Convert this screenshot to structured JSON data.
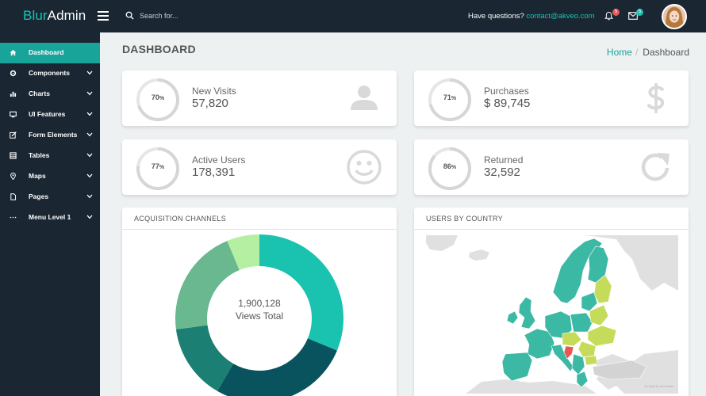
{
  "app": {
    "brand_a": "Blur",
    "brand_b": "Admin"
  },
  "topbar": {
    "search_placeholder": "Search for...",
    "question": "Have questions? ",
    "email": "contact@akveo.com",
    "notifications_count": "5",
    "messages_count": "5"
  },
  "sidebar": {
    "items": [
      {
        "label": "Dashboard",
        "icon": "home-icon",
        "active": true
      },
      {
        "label": "Components",
        "icon": "gear-icon"
      },
      {
        "label": "Charts",
        "icon": "bar-chart-icon"
      },
      {
        "label": "UI Features",
        "icon": "monitor-icon"
      },
      {
        "label": "Form Elements",
        "icon": "edit-icon"
      },
      {
        "label": "Tables",
        "icon": "grid-icon"
      },
      {
        "label": "Maps",
        "icon": "map-marker-icon"
      },
      {
        "label": "Pages",
        "icon": "file-icon"
      },
      {
        "label": "Menu Level 1",
        "icon": "ellipsis-icon"
      }
    ]
  },
  "header": {
    "title": "DASHBOARD",
    "breadcrumb_home": "Home",
    "breadcrumb_sep": "/",
    "breadcrumb_current": "Dashboard"
  },
  "stats": [
    {
      "label": "New Visits",
      "value": "57,820",
      "percent": "70",
      "fraction": 0.7,
      "icon": "person-icon"
    },
    {
      "label": "Purchases",
      "value": "$ 89,745",
      "percent": "71",
      "fraction": 0.71,
      "icon": "dollar-icon"
    },
    {
      "label": "Active Users",
      "value": "178,391",
      "percent": "77",
      "fraction": 0.77,
      "icon": "smiley-icon"
    },
    {
      "label": "Returned",
      "value": "32,592",
      "percent": "86",
      "fraction": 0.86,
      "icon": "refresh-icon"
    }
  ],
  "percent_sign": "%",
  "acquisition": {
    "title": "ACQUISITION CHANNELS",
    "total": "1,900,128",
    "total_label": "Views Total"
  },
  "country": {
    "title": "USERS BY COUNTRY",
    "credit": "JS Map by amCharts"
  },
  "colors": {
    "accent": "#19a49a",
    "brand": "#19c3b0",
    "sidebar": "#1a2733",
    "ring_track": "#e6e6e6",
    "ring_fill": "#d6d6d6",
    "icon_gray": "#d9d9d9",
    "map_base": "#e0e0e0",
    "map_teal": "#3cb9a5",
    "map_lime": "#c5dc5a",
    "map_red": "#e85656"
  },
  "chart_data": {
    "type": "pie",
    "donut": true,
    "series": [
      {
        "values": [
          30,
          26,
          14,
          20,
          6
        ]
      }
    ],
    "colors": [
      "#19c3b0",
      "#08535e",
      "#1b7f73",
      "#6ab88f",
      "#b5efa1"
    ]
  }
}
